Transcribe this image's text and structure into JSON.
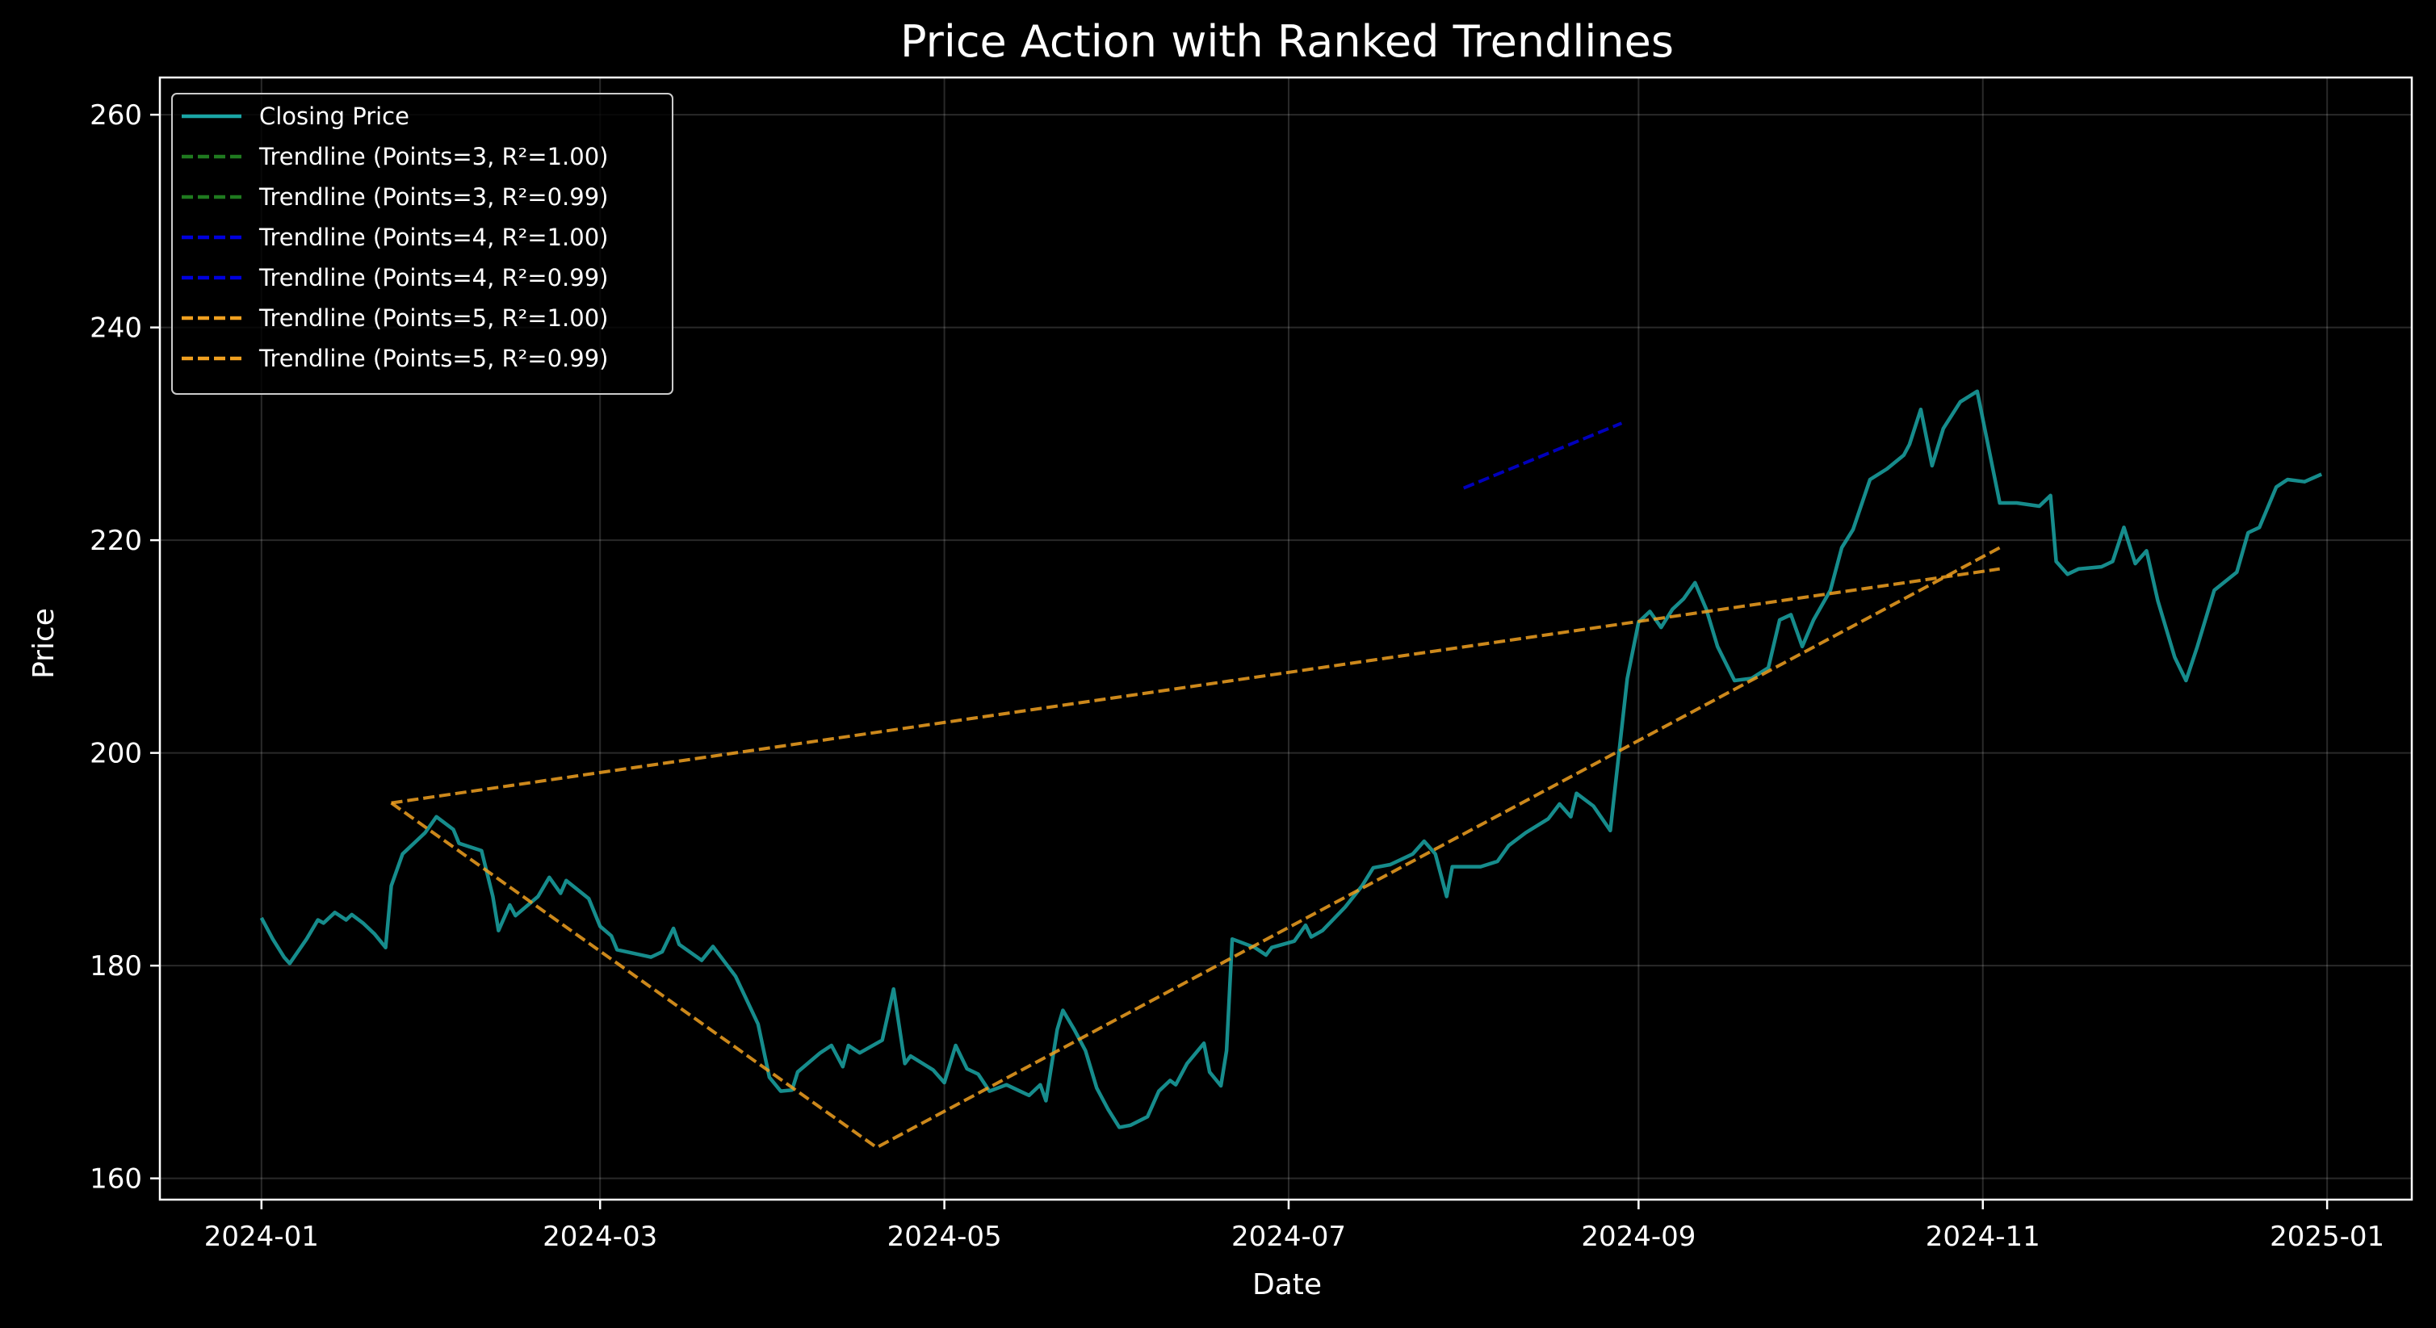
{
  "chart_data": {
    "type": "line",
    "title": "Price Action with Ranked Trendlines",
    "xlabel": "Date",
    "ylabel": "Price",
    "x_axis": {
      "type": "date",
      "range": [
        "2023-12-14",
        "2025-01-16"
      ],
      "ticks": [
        "2024-01-01",
        "2024-03-01",
        "2024-05-01",
        "2024-07-01",
        "2024-09-01",
        "2024-11-01",
        "2025-01-01"
      ],
      "tick_labels": [
        "2024-01",
        "2024-03",
        "2024-05",
        "2024-07",
        "2024-09",
        "2024-11",
        "2025-01"
      ]
    },
    "y_axis": {
      "range": [
        158,
        263.5
      ],
      "ticks": [
        160,
        180,
        200,
        220,
        240,
        260
      ],
      "tick_labels": [
        "160",
        "180",
        "200",
        "220",
        "240",
        "260"
      ]
    },
    "grid": true,
    "background": "#000000",
    "legend": {
      "placement": "top-left",
      "entries": [
        "Closing Price",
        "Trendline (Points=3, R²=1.00)",
        "Trendline (Points=3, R²=0.99)",
        "Trendline (Points=4, R²=1.00)",
        "Trendline (Points=4, R²=0.99)",
        "Trendline (Points=5, R²=1.00)",
        "Trendline (Points=5, R²=0.99)"
      ]
    },
    "series": [
      {
        "name": "Closing Price",
        "color": "#1aa5a5",
        "style": "solid",
        "points": [
          [
            "2024-01-01",
            184.5
          ],
          [
            "2024-01-03",
            182.5
          ],
          [
            "2024-01-05",
            180.8
          ],
          [
            "2024-01-06",
            180.2
          ],
          [
            "2024-01-09",
            182.5
          ],
          [
            "2024-01-11",
            184.3
          ],
          [
            "2024-01-12",
            184.0
          ],
          [
            "2024-01-14",
            185.0
          ],
          [
            "2024-01-16",
            184.3
          ],
          [
            "2024-01-17",
            184.8
          ],
          [
            "2024-01-19",
            184.0
          ],
          [
            "2024-01-21",
            183.0
          ],
          [
            "2024-01-23",
            181.7
          ],
          [
            "2024-01-24",
            187.5
          ],
          [
            "2024-01-26",
            190.5
          ],
          [
            "2024-01-30",
            192.5
          ],
          [
            "2024-02-01",
            194.0
          ],
          [
            "2024-02-04",
            192.8
          ],
          [
            "2024-02-05",
            191.5
          ],
          [
            "2024-02-09",
            190.8
          ],
          [
            "2024-02-11",
            186.5
          ],
          [
            "2024-02-12",
            183.3
          ],
          [
            "2024-02-14",
            185.7
          ],
          [
            "2024-02-15",
            184.7
          ],
          [
            "2024-02-19",
            186.5
          ],
          [
            "2024-02-21",
            188.3
          ],
          [
            "2024-02-23",
            186.8
          ],
          [
            "2024-02-24",
            188.0
          ],
          [
            "2024-02-28",
            186.3
          ],
          [
            "2024-03-01",
            183.7
          ],
          [
            "2024-03-03",
            182.8
          ],
          [
            "2024-03-04",
            181.5
          ],
          [
            "2024-03-10",
            180.8
          ],
          [
            "2024-03-12",
            181.3
          ],
          [
            "2024-03-14",
            183.5
          ],
          [
            "2024-03-15",
            182.0
          ],
          [
            "2024-03-19",
            180.5
          ],
          [
            "2024-03-21",
            181.8
          ],
          [
            "2024-03-25",
            179.0
          ],
          [
            "2024-03-29",
            174.5
          ],
          [
            "2024-03-31",
            169.5
          ],
          [
            "2024-04-02",
            168.2
          ],
          [
            "2024-04-04",
            168.3
          ],
          [
            "2024-04-05",
            170.0
          ],
          [
            "2024-04-09",
            171.8
          ],
          [
            "2024-04-11",
            172.5
          ],
          [
            "2024-04-13",
            170.5
          ],
          [
            "2024-04-14",
            172.5
          ],
          [
            "2024-04-16",
            171.8
          ],
          [
            "2024-04-20",
            173.0
          ],
          [
            "2024-04-22",
            177.8
          ],
          [
            "2024-04-24",
            170.8
          ],
          [
            "2024-04-25",
            171.5
          ],
          [
            "2024-04-29",
            170.2
          ],
          [
            "2024-05-01",
            169.0
          ],
          [
            "2024-05-03",
            172.5
          ],
          [
            "2024-05-05",
            170.3
          ],
          [
            "2024-05-07",
            169.8
          ],
          [
            "2024-05-09",
            168.2
          ],
          [
            "2024-05-12",
            168.8
          ],
          [
            "2024-05-14",
            168.3
          ],
          [
            "2024-05-16",
            167.8
          ],
          [
            "2024-05-18",
            168.8
          ],
          [
            "2024-05-19",
            167.3
          ],
          [
            "2024-05-21",
            174.0
          ],
          [
            "2024-05-22",
            175.8
          ],
          [
            "2024-05-24",
            174.0
          ],
          [
            "2024-05-26",
            172.0
          ],
          [
            "2024-05-28",
            168.5
          ],
          [
            "2024-05-30",
            166.5
          ],
          [
            "2024-06-01",
            164.8
          ],
          [
            "2024-06-03",
            165.0
          ],
          [
            "2024-06-06",
            165.8
          ],
          [
            "2024-06-08",
            168.2
          ],
          [
            "2024-06-10",
            169.2
          ],
          [
            "2024-06-11",
            168.8
          ],
          [
            "2024-06-13",
            170.8
          ],
          [
            "2024-06-16",
            172.7
          ],
          [
            "2024-06-17",
            170.0
          ],
          [
            "2024-06-19",
            168.7
          ],
          [
            "2024-06-20",
            172.0
          ],
          [
            "2024-06-21",
            182.5
          ],
          [
            "2024-06-25",
            181.7
          ],
          [
            "2024-06-27",
            181.0
          ],
          [
            "2024-06-28",
            181.7
          ],
          [
            "2024-07-02",
            182.3
          ],
          [
            "2024-07-04",
            183.8
          ],
          [
            "2024-07-05",
            182.7
          ],
          [
            "2024-07-07",
            183.3
          ],
          [
            "2024-07-11",
            185.5
          ],
          [
            "2024-07-14",
            187.5
          ],
          [
            "2024-07-16",
            189.2
          ],
          [
            "2024-07-19",
            189.5
          ],
          [
            "2024-07-23",
            190.5
          ],
          [
            "2024-07-25",
            191.7
          ],
          [
            "2024-07-27",
            190.5
          ],
          [
            "2024-07-29",
            186.5
          ],
          [
            "2024-07-30",
            189.3
          ],
          [
            "2024-08-04",
            189.3
          ],
          [
            "2024-08-07",
            189.8
          ],
          [
            "2024-08-09",
            191.3
          ],
          [
            "2024-08-12",
            192.5
          ],
          [
            "2024-08-16",
            193.8
          ],
          [
            "2024-08-18",
            195.2
          ],
          [
            "2024-08-20",
            194.0
          ],
          [
            "2024-08-21",
            196.2
          ],
          [
            "2024-08-24",
            195.0
          ],
          [
            "2024-08-27",
            192.7
          ],
          [
            "2024-08-30",
            207.0
          ],
          [
            "2024-09-01",
            212.3
          ],
          [
            "2024-09-03",
            213.3
          ],
          [
            "2024-09-05",
            211.8
          ],
          [
            "2024-09-07",
            213.5
          ],
          [
            "2024-09-09",
            214.5
          ],
          [
            "2024-09-11",
            216.0
          ],
          [
            "2024-09-13",
            213.5
          ],
          [
            "2024-09-15",
            210.0
          ],
          [
            "2024-09-18",
            206.8
          ],
          [
            "2024-09-21",
            207.0
          ],
          [
            "2024-09-24",
            208.0
          ],
          [
            "2024-09-26",
            212.5
          ],
          [
            "2024-09-28",
            213.0
          ],
          [
            "2024-09-30",
            210.0
          ],
          [
            "2024-10-02",
            212.5
          ],
          [
            "2024-10-05",
            215.3
          ],
          [
            "2024-10-07",
            219.3
          ],
          [
            "2024-10-09",
            221.0
          ],
          [
            "2024-10-12",
            225.7
          ],
          [
            "2024-10-15",
            226.7
          ],
          [
            "2024-10-18",
            228.0
          ],
          [
            "2024-10-19",
            229.0
          ],
          [
            "2024-10-21",
            232.3
          ],
          [
            "2024-10-23",
            227.0
          ],
          [
            "2024-10-25",
            230.5
          ],
          [
            "2024-10-28",
            233.0
          ],
          [
            "2024-10-31",
            234.0
          ],
          [
            "2024-11-04",
            223.5
          ],
          [
            "2024-11-07",
            223.5
          ],
          [
            "2024-11-11",
            223.2
          ],
          [
            "2024-11-13",
            224.2
          ],
          [
            "2024-11-14",
            218.0
          ],
          [
            "2024-11-16",
            216.8
          ],
          [
            "2024-11-18",
            217.3
          ],
          [
            "2024-11-22",
            217.5
          ],
          [
            "2024-11-24",
            218.0
          ],
          [
            "2024-11-26",
            221.2
          ],
          [
            "2024-11-28",
            217.8
          ],
          [
            "2024-11-30",
            219.0
          ],
          [
            "2024-12-02",
            214.3
          ],
          [
            "2024-12-05",
            209.0
          ],
          [
            "2024-12-07",
            206.8
          ],
          [
            "2024-12-09",
            210.0
          ],
          [
            "2024-12-12",
            215.3
          ],
          [
            "2024-12-16",
            217.0
          ],
          [
            "2024-12-18",
            220.7
          ],
          [
            "2024-12-20",
            221.2
          ],
          [
            "2024-12-23",
            225.0
          ],
          [
            "2024-12-25",
            225.7
          ],
          [
            "2024-12-28",
            225.5
          ],
          [
            "2024-12-31",
            226.2
          ]
        ],
        "points_note_removed": true
      },
      {
        "name": "Trendline (Points=3, R²=1.00)",
        "color": "#1f7a1f",
        "style": "dashed",
        "points": []
      },
      {
        "name": "Trendline (Points=3, R²=0.99)",
        "color": "#1f7a1f",
        "style": "dashed",
        "points": []
      },
      {
        "name": "Trendline (Points=4, R²=1.00)",
        "color": "#0000dd",
        "style": "dashed",
        "points": [
          [
            "2024-08-01",
            224.9
          ],
          [
            "2024-08-29",
            231.0
          ]
        ]
      },
      {
        "name": "Trendline (Points=4, R²=0.99)",
        "color": "#0000dd",
        "style": "dashed",
        "points": []
      },
      {
        "name": "Trendline (Points=5, R²=1.00)",
        "color": "#f0a020",
        "style": "dashed",
        "points": [
          [
            "2024-01-24",
            195.3
          ],
          [
            "2024-04-19",
            162.9
          ],
          [
            "2024-11-04",
            219.3
          ]
        ]
      },
      {
        "name": "Trendline (Points=5, R²=0.99)",
        "color": "#f0a020",
        "style": "dashed",
        "points": [
          [
            "2024-01-24",
            195.3
          ],
          [
            "2024-11-04",
            217.3
          ]
        ]
      }
    ]
  }
}
